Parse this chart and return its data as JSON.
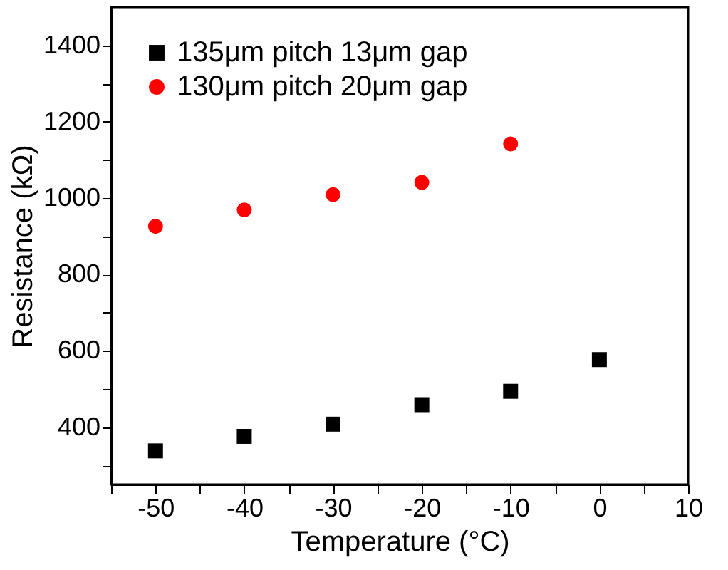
{
  "chart_data": {
    "type": "scatter",
    "xlabel": "Temperature (°C)",
    "ylabel": "Resistance (kΩ)",
    "x": [
      -50,
      -40,
      -30,
      -20,
      -10,
      0
    ],
    "series": [
      {
        "name": "135μm pitch    13μm gap",
        "color": "#000000",
        "marker": "square",
        "values": [
          338,
          376,
          408,
          459,
          494,
          577
        ]
      },
      {
        "name": "130μm pitch    20μm gap",
        "color": "#ff0000",
        "marker": "circle",
        "values": [
          926,
          969,
          1009,
          1041,
          1142,
          null
        ]
      }
    ],
    "xlim": [
      -55,
      10
    ],
    "ylim": [
      250,
      1500
    ],
    "xticks": [
      {
        "value": -55,
        "label": null
      },
      -50,
      {
        "value": -45,
        "label": null
      },
      -40,
      {
        "value": -35,
        "label": null
      },
      -30,
      {
        "value": -25,
        "label": null
      },
      -20,
      {
        "value": -15,
        "label": null
      },
      -10,
      {
        "value": -5,
        "label": null
      },
      0,
      {
        "value": 5,
        "label": null
      },
      10
    ],
    "yticks": [
      {
        "value": 300,
        "label": null
      },
      400,
      {
        "value": 500,
        "label": null
      },
      600,
      {
        "value": 700,
        "label": null
      },
      800,
      {
        "value": 900,
        "label": null
      },
      1000,
      {
        "value": 1100,
        "label": null
      },
      1200,
      {
        "value": 1300,
        "label": null
      },
      1400
    ],
    "grid": false,
    "legend": "top left"
  }
}
